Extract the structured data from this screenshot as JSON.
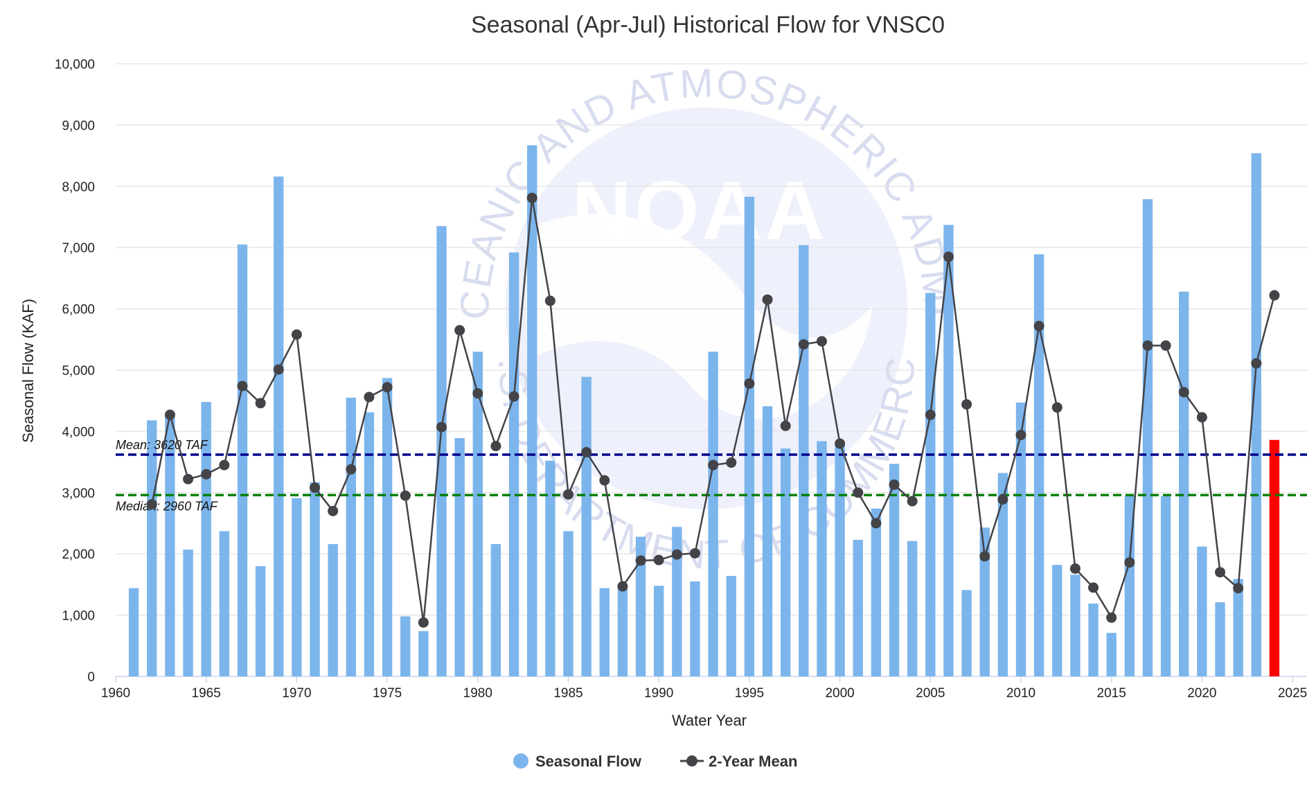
{
  "chart_data": {
    "type": "bar",
    "title": "Seasonal (Apr-Jul) Historical Flow for VNSC0",
    "xlabel": "Water Year",
    "ylabel": "Seasonal Flow (KAF)",
    "xlim": [
      1960,
      2025.8
    ],
    "ylim": [
      0,
      10000
    ],
    "x_ticks": [
      1960,
      1965,
      1970,
      1975,
      1980,
      1985,
      1990,
      1995,
      2000,
      2005,
      2010,
      2015,
      2020,
      2025
    ],
    "x_tick_labels": [
      "1960",
      "1965",
      "1970",
      "1975",
      "1980",
      "1985",
      "1990",
      "1995",
      "2000",
      "2005",
      "2010",
      "2015",
      "2020",
      "2025"
    ],
    "y_ticks": [
      0,
      1000,
      2000,
      3000,
      4000,
      5000,
      6000,
      7000,
      8000,
      9000,
      10000
    ],
    "y_tick_labels": [
      "0",
      "1,000",
      "2,000",
      "3,000",
      "4,000",
      "5,000",
      "6,000",
      "7,000",
      "8,000",
      "9,000",
      "10,000"
    ],
    "grid": true,
    "legend_position": "bottom-center",
    "colors": {
      "seasonal_flow": "#7cb5ec",
      "two_year_mean": "#434348",
      "current_year": "#ff0000",
      "mean_line": "#00008b",
      "median_line": "#008000",
      "grid": "#e6e6e6",
      "watermark": "#eef0fb"
    },
    "series": [
      {
        "name": "Seasonal Flow",
        "type": "bar",
        "x": [
          1961,
          1962,
          1963,
          1964,
          1965,
          1966,
          1967,
          1968,
          1969,
          1970,
          1971,
          1972,
          1973,
          1974,
          1975,
          1976,
          1977,
          1978,
          1979,
          1980,
          1981,
          1982,
          1983,
          1984,
          1985,
          1986,
          1987,
          1988,
          1989,
          1990,
          1991,
          1992,
          1993,
          1994,
          1995,
          1996,
          1997,
          1998,
          1999,
          2000,
          2001,
          2002,
          2003,
          2004,
          2005,
          2006,
          2007,
          2008,
          2009,
          2010,
          2011,
          2012,
          2013,
          2014,
          2015,
          2016,
          2017,
          2018,
          2019,
          2020,
          2021,
          2022,
          2023
        ],
        "values": [
          1440,
          4180,
          4300,
          2070,
          4480,
          2370,
          7050,
          1800,
          8160,
          2910,
          3170,
          2160,
          4550,
          4310,
          4870,
          980,
          740,
          7350,
          3890,
          5300,
          2160,
          6920,
          8670,
          3520,
          2370,
          4890,
          1440,
          1450,
          2280,
          1480,
          2440,
          1550,
          5300,
          1640,
          7830,
          4410,
          3720,
          7040,
          3840,
          3770,
          2230,
          2740,
          3470,
          2210,
          6260,
          7370,
          1410,
          2430,
          3320,
          4470,
          6890,
          1820,
          1660,
          1190,
          710,
          2950,
          7790,
          2940,
          6280,
          2120,
          1210,
          1590,
          8540
        ]
      },
      {
        "name": "2-Year Mean",
        "type": "line",
        "x": [
          1962,
          1963,
          1964,
          1965,
          1966,
          1967,
          1968,
          1969,
          1970,
          1971,
          1972,
          1973,
          1974,
          1975,
          1976,
          1977,
          1978,
          1979,
          1980,
          1981,
          1982,
          1983,
          1984,
          1985,
          1986,
          1987,
          1988,
          1989,
          1990,
          1991,
          1992,
          1993,
          1994,
          1995,
          1996,
          1997,
          1998,
          1999,
          2000,
          2001,
          2002,
          2003,
          2004,
          2005,
          2006,
          2007,
          2008,
          2009,
          2010,
          2011,
          2012,
          2013,
          2014,
          2015,
          2016,
          2017,
          2018,
          2019,
          2020,
          2021,
          2022,
          2023,
          2024
        ],
        "values": [
          2810,
          4270,
          3220,
          3300,
          3450,
          4740,
          4460,
          5010,
          5580,
          3080,
          2700,
          3380,
          4560,
          4720,
          2950,
          880,
          4070,
          5650,
          4620,
          3760,
          4570,
          7810,
          6130,
          2970,
          3660,
          3200,
          1470,
          1890,
          1900,
          1990,
          2010,
          3450,
          3490,
          4780,
          6150,
          4090,
          5420,
          5470,
          3800,
          3000,
          2500,
          3130,
          2860,
          4270,
          6850,
          4440,
          1960,
          2890,
          3940,
          5720,
          4390,
          1760,
          1450,
          960,
          1860,
          5400,
          5400,
          4640,
          4230,
          1700,
          1440,
          5110,
          6220
        ]
      },
      {
        "name": "Current Year",
        "type": "bar",
        "x": [
          2024
        ],
        "values": [
          3860
        ]
      }
    ],
    "reference_lines": [
      {
        "label": "Mean: 3620 TAF",
        "value": 3620
      },
      {
        "label": "Median: 2960 TAF",
        "value": 2960
      }
    ],
    "legend": [
      "Seasonal Flow",
      "2-Year Mean"
    ]
  },
  "watermark": {
    "logo_text": "NOAA",
    "ring_text": "NATIONAL OCEANIC AND ATMOSPHERIC ADMINISTRATION",
    "bottom_text": "U.S. DEPARTMENT OF COMMERCE"
  }
}
